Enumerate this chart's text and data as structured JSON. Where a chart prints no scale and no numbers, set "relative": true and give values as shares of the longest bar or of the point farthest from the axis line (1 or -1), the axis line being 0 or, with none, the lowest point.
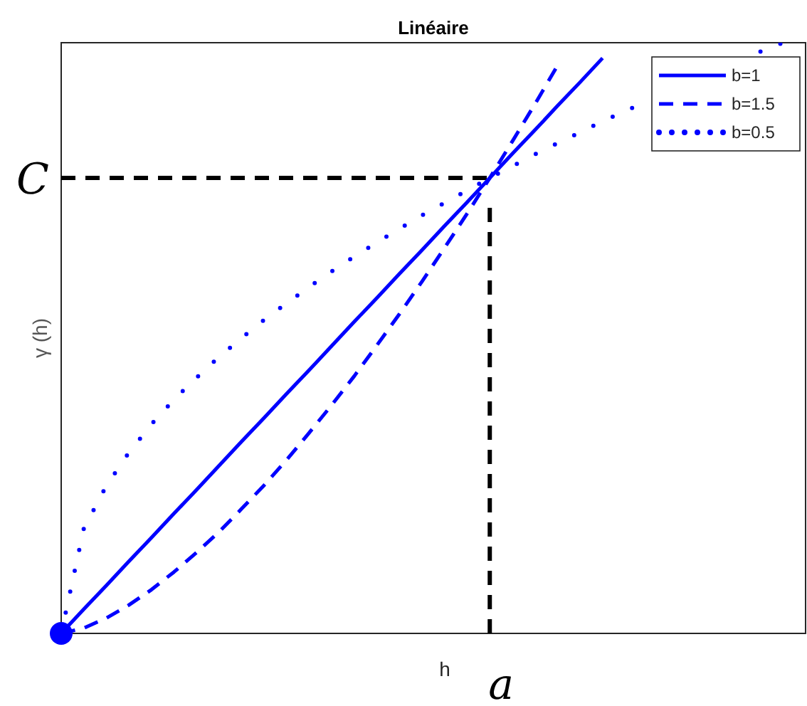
{
  "chart_data": {
    "type": "line",
    "title": "Linéaire",
    "xlabel": "h",
    "ylabel": "γ (h)",
    "relative": true,
    "legend": "top right",
    "categories": [
      null,
      null,
      null,
      null,
      null,
      null,
      null,
      null,
      null,
      null,
      null,
      null,
      null,
      null,
      null,
      null,
      null,
      null,
      null,
      null,
      null,
      null,
      null,
      null,
      null,
      null,
      null,
      null,
      null,
      null,
      null,
      null,
      null,
      null
    ],
    "series": [
      {
        "name": "b=1",
        "color": "#0000ff",
        "line_style": "solid",
        "values": [
          0,
          0.041,
          0.081,
          0.122,
          0.162,
          0.203,
          0.243,
          0.284,
          0.325,
          0.365,
          0.406,
          0.446,
          0.487,
          0.528,
          0.568,
          0.609,
          0.649,
          0.69,
          0.73,
          0.771,
          0.812,
          0.852,
          0.893,
          0.933,
          0.974,
          null,
          null,
          null,
          null,
          null,
          null,
          null,
          null,
          null
        ]
      },
      {
        "name": "b=1.5",
        "color": "#0000ff",
        "line_style": "dashed",
        "values": [
          0,
          0.009,
          0.026,
          0.048,
          0.074,
          0.104,
          0.137,
          0.172,
          0.211,
          0.251,
          0.294,
          0.34,
          0.387,
          0.436,
          0.488,
          0.541,
          0.596,
          0.653,
          0.711,
          0.771,
          0.833,
          0.896,
          0.961,
          null,
          null,
          null,
          null,
          null,
          null,
          null,
          null,
          null,
          null,
          null
        ]
      },
      {
        "name": "b=0.5",
        "color": "#0000ff",
        "line_style": "dotted",
        "values": [
          0,
          0.177,
          0.25,
          0.306,
          0.354,
          0.396,
          0.433,
          0.468,
          0.5,
          0.531,
          0.559,
          0.587,
          0.613,
          0.638,
          0.662,
          0.685,
          0.708,
          0.729,
          0.75,
          0.771,
          0.791,
          0.811,
          0.83,
          0.848,
          0.867,
          0.884,
          0.902,
          null,
          null,
          null,
          null,
          0.985,
          1,
          null
        ]
      }
    ],
    "annotations": [
      "a"
    ],
    "ref_lines": [
      {
        "axis": "y",
        "value": 0.771,
        "label": "C",
        "color": "#000000",
        "line_style": "dashed"
      }
    ]
  }
}
